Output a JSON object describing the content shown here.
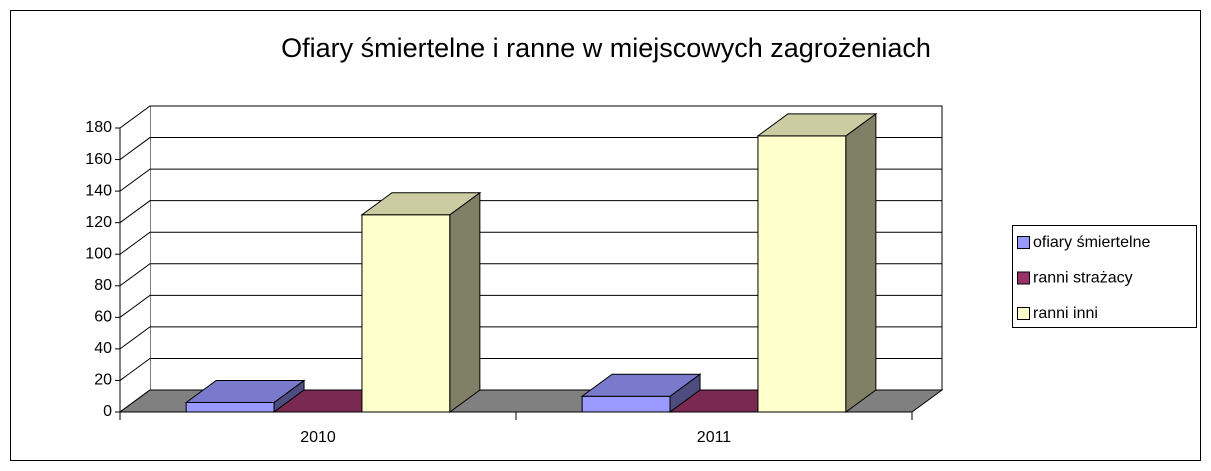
{
  "chart_data": {
    "type": "bar3d",
    "title": "Ofiary śmiertelne i ranne w miejscowych zagrożeniach",
    "categories": [
      "2010",
      "2011"
    ],
    "series": [
      {
        "name": "ofiary śmiertelne",
        "color": "#9999ff",
        "values": [
          6,
          10
        ]
      },
      {
        "name": "ranni strażacy",
        "color": "#993366",
        "values": [
          0,
          0
        ]
      },
      {
        "name": "ranni inni",
        "color": "#ffffcc",
        "values": [
          125,
          175
        ]
      }
    ],
    "ylim": [
      0,
      180
    ],
    "yticks": [
      0,
      20,
      40,
      60,
      80,
      100,
      120,
      140,
      160,
      180
    ],
    "grid": true,
    "legend": "right"
  }
}
